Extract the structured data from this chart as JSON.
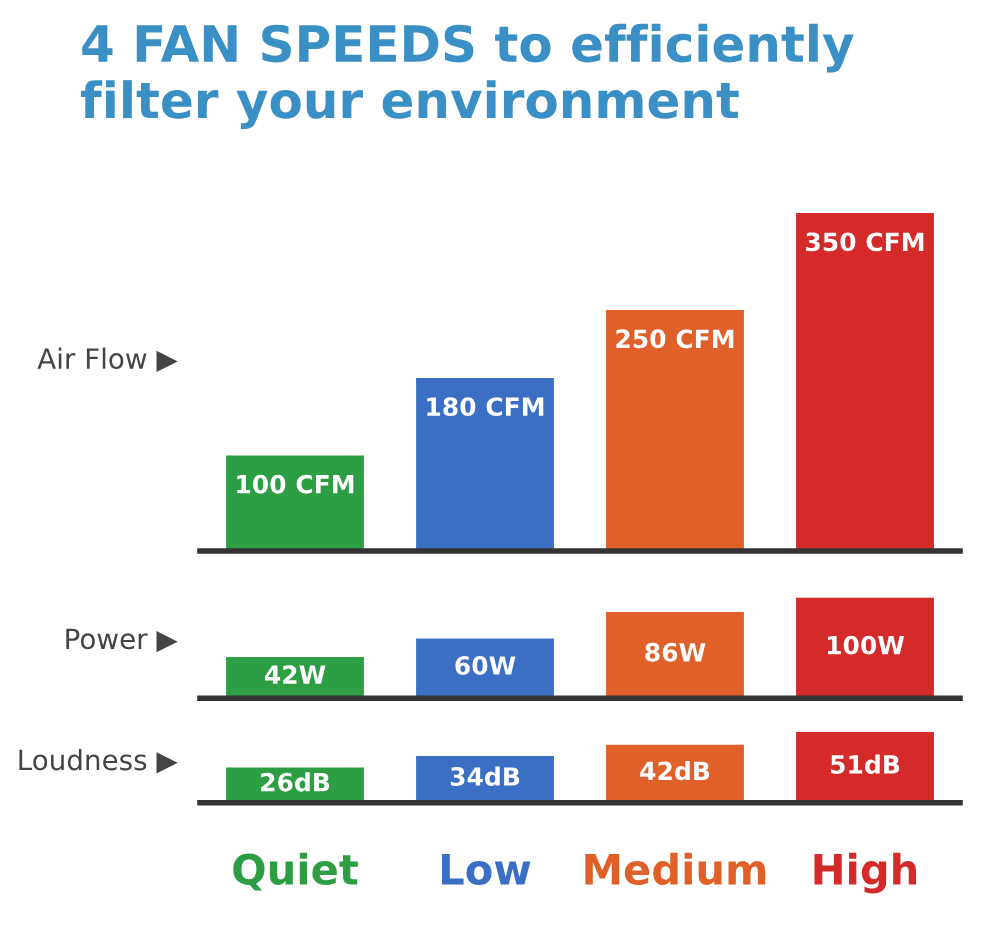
{
  "chart_data": [
    {
      "type": "bar",
      "title": "4 FAN SPEEDS to efficiently filter your environment",
      "ylabel": "Air Flow ▶",
      "values": [
        100,
        180,
        250,
        350
      ],
      "colors": [
        "#2e9e45",
        "#3b6fc4",
        "#e0602a",
        "#d42a2a"
      ],
      "value_labels": [
        "100 CFM",
        "180 CFM",
        "250 CFM",
        "350 CFM"
      ],
      "tick_labels": false
    },
    {
      "type": "bar",
      "ylabel": "Power ▶",
      "values": [
        42,
        60,
        86,
        100
      ],
      "colors": [
        "#2e9e45",
        "#3b6fc4",
        "#e0602a",
        "#d42a2a"
      ],
      "value_labels": [
        "42W",
        "60W",
        "86W",
        "100W"
      ],
      "tick_labels": false
    },
    {
      "type": "bar",
      "ylabel": "Loudness ▶",
      "categories": [
        "Quiet",
        "Low",
        "Medium",
        "High"
      ],
      "values": [
        26,
        34,
        42,
        51
      ],
      "colors": [
        "#2e9e45",
        "#3b6fc4",
        "#e0602a",
        "#d42a2a"
      ],
      "value_labels": [
        "26dB",
        "34dB",
        "42dB",
        "51dB"
      ],
      "tick_labels": "x"
    }
  ]
}
